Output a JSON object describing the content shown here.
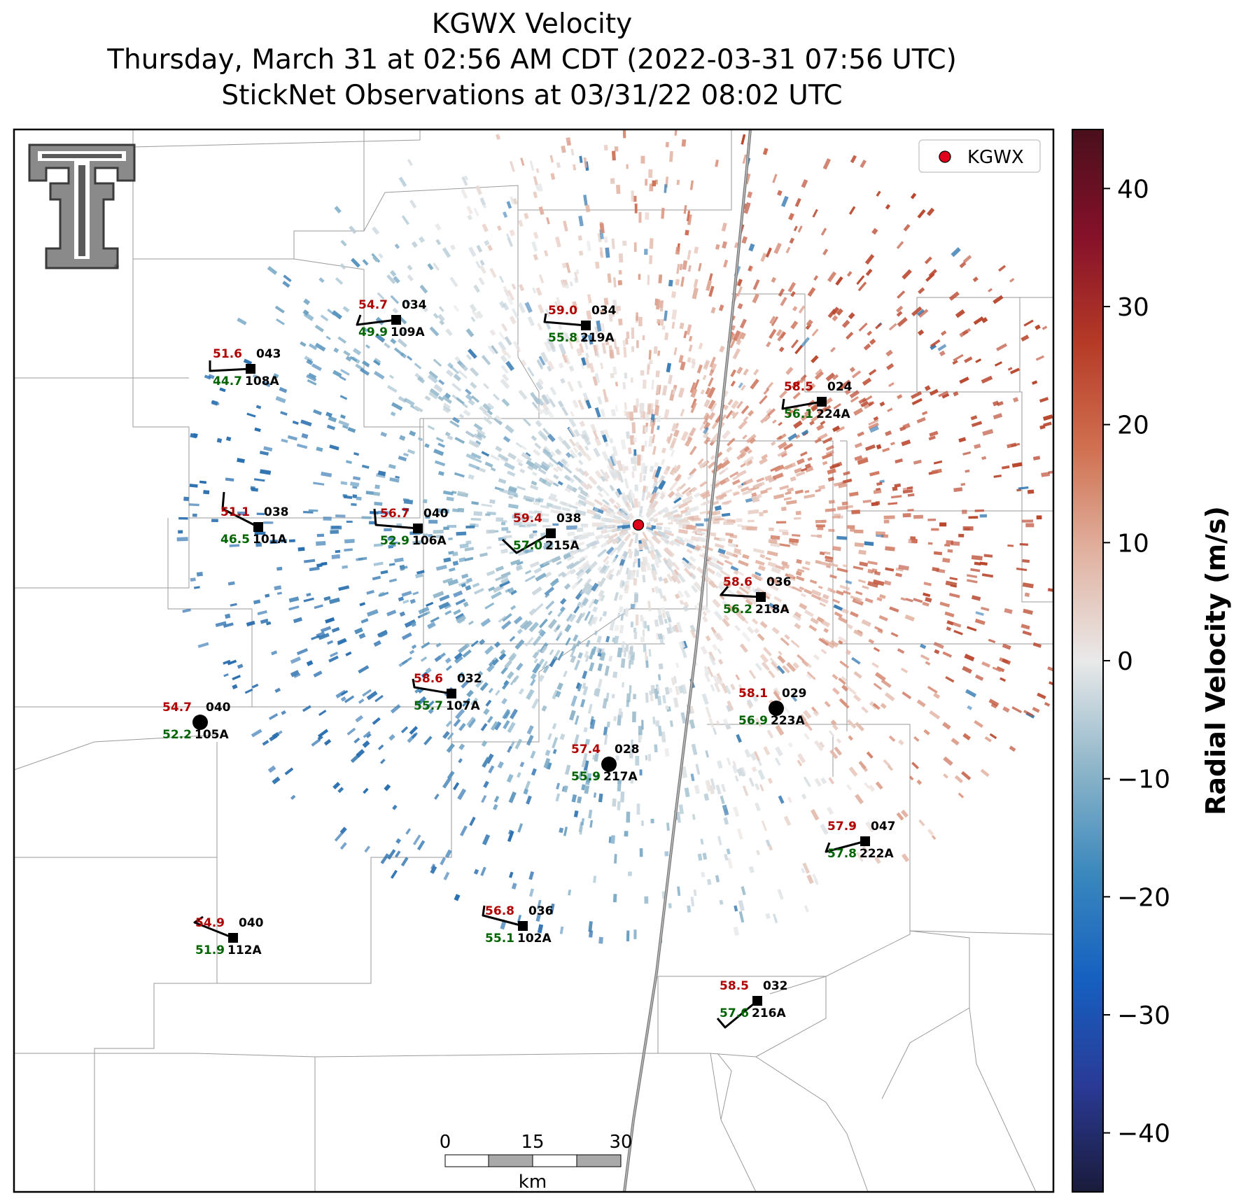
{
  "title": {
    "line1": "KGWX Velocity",
    "line2": "Thursday, March 31 at 02:56 AM CDT (2022-03-31 07:56 UTC)",
    "line3": "StickNet Observations at 03/31/22 08:02 UTC"
  },
  "legend": {
    "label": "KGWX",
    "marker_color": "#e0001b",
    "placement": "top-right"
  },
  "logo": {
    "name": "texas-tech-double-t-logo"
  },
  "colorbar": {
    "label": "Radial Velocity (m/s)",
    "range": [
      -45,
      45
    ],
    "ticks": [
      {
        "value": 40,
        "label": "40"
      },
      {
        "value": 30,
        "label": "30"
      },
      {
        "value": 20,
        "label": "20"
      },
      {
        "value": 10,
        "label": "10"
      },
      {
        "value": 0,
        "label": "0"
      },
      {
        "value": -10,
        "label": "−10"
      },
      {
        "value": -20,
        "label": "−20"
      },
      {
        "value": -30,
        "label": "−30"
      },
      {
        "value": -40,
        "label": "−40"
      }
    ],
    "colors": [
      "#1a1b3a",
      "#2a3a96",
      "#1560c0",
      "#3a88bd",
      "#8fb6c9",
      "#e9e9e9",
      "#e1b3a2",
      "#d07050",
      "#b53a26",
      "#85112a",
      "#4a0f1c"
    ]
  },
  "scale_bar": {
    "ticks": [
      "0",
      "15",
      "30"
    ],
    "unit": "km"
  },
  "stations": [
    {
      "id": "108A",
      "temp": "51.6",
      "dew": "44.7",
      "dir": "043"
    },
    {
      "id": "109A",
      "temp": "54.7",
      "dew": "49.9",
      "dir": "034"
    },
    {
      "id": "219A",
      "temp": "59.0",
      "dew": "55.8",
      "dir": "034"
    },
    {
      "id": "224A",
      "temp": "58.5",
      "dew": "56.1",
      "dir": "024"
    },
    {
      "id": "101A",
      "temp": "51.1",
      "dew": "46.5",
      "dir": "038"
    },
    {
      "id": "106A",
      "temp": "56.7",
      "dew": "52.9",
      "dir": "040"
    },
    {
      "id": "215A",
      "temp": "59.4",
      "dew": "57.0",
      "dir": "038"
    },
    {
      "id": "218A",
      "temp": "58.6",
      "dew": "56.2",
      "dir": "036"
    },
    {
      "id": "107A",
      "temp": "58.6",
      "dew": "55.7",
      "dir": "032"
    },
    {
      "id": "223A",
      "temp": "58.1",
      "dew": "56.9",
      "dir": "029"
    },
    {
      "id": "105A",
      "temp": "54.7",
      "dew": "52.2",
      "dir": "040"
    },
    {
      "id": "217A",
      "temp": "57.4",
      "dew": "55.9",
      "dir": "028"
    },
    {
      "id": "222A",
      "temp": "57.9",
      "dew": "57.8",
      "dir": "047"
    },
    {
      "id": "112A",
      "temp": "54.9",
      "dew": "51.9",
      "dir": "040"
    },
    {
      "id": "102A",
      "temp": "56.8",
      "dew": "55.1",
      "dir": "036"
    },
    {
      "id": "216A",
      "temp": "58.5",
      "dew": "57.6",
      "dir": "032"
    }
  ]
}
